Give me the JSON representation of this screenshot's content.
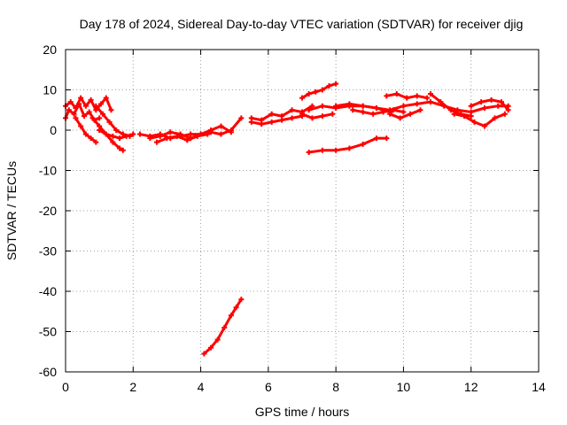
{
  "chart_data": {
    "type": "scatter",
    "title": "Day 178 of 2024, Sidereal Day-to-day VTEC variation (SDTVAR) for receiver djig",
    "xlabel": "GPS time / hours",
    "ylabel": "SDTVAR / TECUs",
    "xlim": [
      0,
      14
    ],
    "ylim": [
      -60,
      20
    ],
    "xticks": [
      0,
      2,
      4,
      6,
      8,
      10,
      12,
      14
    ],
    "yticks": [
      -60,
      -50,
      -40,
      -30,
      -20,
      -10,
      0,
      10,
      20
    ],
    "grid": true,
    "legend": "none",
    "series_color": "#ff0000",
    "series": [
      {
        "x": [
          0.0,
          0.15,
          0.3,
          0.45,
          0.6,
          0.75,
          0.9,
          1.05,
          1.2,
          1.35
        ],
        "y": [
          6,
          7,
          5.5,
          8,
          6,
          7.5,
          5,
          6.5,
          8,
          5
        ]
      },
      {
        "x": [
          0.0,
          0.1,
          0.25,
          0.4,
          0.55,
          0.7,
          0.85,
          1.0
        ],
        "y": [
          3,
          5,
          4,
          6.5,
          3.5,
          4.5,
          2.5,
          3
        ]
      },
      {
        "x": [
          0.3,
          0.45,
          0.6,
          0.75,
          0.9
        ],
        "y": [
          3,
          1,
          -1,
          -2,
          -3
        ]
      },
      {
        "x": [
          0.8,
          1.0,
          1.2,
          1.4,
          1.6,
          1.7
        ],
        "y": [
          3,
          1,
          -1,
          -3,
          -4.5,
          -5
        ]
      },
      {
        "x": [
          0.9,
          1.1,
          1.3,
          1.5,
          1.7,
          1.9
        ],
        "y": [
          6,
          4,
          2,
          0,
          -1,
          -1.5
        ]
      },
      {
        "x": [
          1.0,
          1.2,
          1.4,
          1.6,
          1.8,
          2.0
        ],
        "y": [
          0,
          -1,
          -1.5,
          -2,
          -1.5,
          -1
        ]
      },
      {
        "x": [
          2.2,
          2.5,
          2.8,
          3.1,
          3.4,
          3.7,
          4.0,
          4.3,
          4.6,
          4.9,
          5.2
        ],
        "y": [
          -1,
          -1.5,
          -1,
          -2,
          -1.5,
          -1,
          -1,
          -0.5,
          -1,
          0,
          3
        ]
      },
      {
        "x": [
          2.5,
          2.8,
          3.1,
          3.4,
          3.7,
          4.0,
          4.3,
          4.6,
          4.9
        ],
        "y": [
          -2,
          -1.5,
          -0.5,
          -1,
          -2,
          -1,
          0,
          1,
          -0.5
        ]
      },
      {
        "x": [
          2.7,
          3.0,
          3.3,
          3.6,
          3.9,
          4.2
        ],
        "y": [
          -3,
          -2,
          -1.5,
          -2.5,
          -1.5,
          -1
        ]
      },
      {
        "x": [
          5.5,
          5.8,
          6.1,
          6.4,
          6.7,
          7.0,
          7.3
        ],
        "y": [
          3,
          2.5,
          4,
          3.5,
          5,
          4.5,
          6
        ]
      },
      {
        "x": [
          5.5,
          5.8,
          6.1,
          6.4,
          6.7,
          7.0
        ],
        "y": [
          2,
          1.5,
          2,
          2.5,
          3,
          3.5
        ]
      },
      {
        "x": [
          7.0,
          7.2,
          7.4,
          7.6,
          7.8,
          8.0
        ],
        "y": [
          8,
          9,
          9.5,
          10,
          11,
          11.5
        ]
      },
      {
        "x": [
          7.2,
          7.6,
          8.0,
          8.4,
          8.8,
          9.2,
          9.6
        ],
        "y": [
          5,
          6,
          5.5,
          6,
          6,
          5.5,
          4.5
        ]
      },
      {
        "x": [
          7.0,
          7.3,
          7.6,
          7.9
        ],
        "y": [
          4,
          3,
          3.5,
          4
        ]
      },
      {
        "x": [
          7.2,
          7.6,
          8.0,
          8.4,
          8.8,
          9.2,
          9.5
        ],
        "y": [
          -5.5,
          -5,
          -5,
          -4.5,
          -3.5,
          -2,
          -2
        ]
      },
      {
        "x": [
          8.0,
          8.4,
          8.8,
          9.2,
          9.6,
          10.0,
          10.4,
          10.8,
          11.2,
          11.6,
          12.0,
          12.4,
          12.8,
          13.1
        ],
        "y": [
          6,
          6.5,
          6,
          5.5,
          5,
          6,
          6.5,
          7,
          6,
          5,
          4.5,
          5.5,
          6,
          6
        ]
      },
      {
        "x": [
          8.5,
          8.8,
          9.1,
          9.4,
          9.7,
          10.0
        ],
        "y": [
          5,
          4.5,
          4,
          4.5,
          5,
          4.5
        ]
      },
      {
        "x": [
          9.5,
          9.8,
          10.1,
          10.4,
          10.7
        ],
        "y": [
          8.5,
          9,
          8,
          8.5,
          8
        ]
      },
      {
        "x": [
          9.6,
          9.9,
          10.2,
          10.5
        ],
        "y": [
          4,
          3,
          4,
          5
        ]
      },
      {
        "x": [
          10.8,
          11.1,
          11.4,
          11.7,
          12.0
        ],
        "y": [
          9,
          7,
          5,
          4,
          3.5
        ]
      },
      {
        "x": [
          11.5,
          11.8,
          12.1,
          12.4,
          12.7,
          13.0
        ],
        "y": [
          4,
          3.5,
          2,
          1,
          3,
          4
        ]
      },
      {
        "x": [
          12.0,
          12.3,
          12.6,
          12.9,
          13.1
        ],
        "y": [
          6,
          7,
          7.5,
          7,
          5
        ]
      },
      {
        "x": [
          4.1,
          4.3,
          4.5,
          4.7,
          4.9,
          5.05,
          5.2
        ],
        "y": [
          -55.5,
          -54,
          -52,
          -49,
          -46,
          -44,
          -42
        ]
      }
    ]
  }
}
